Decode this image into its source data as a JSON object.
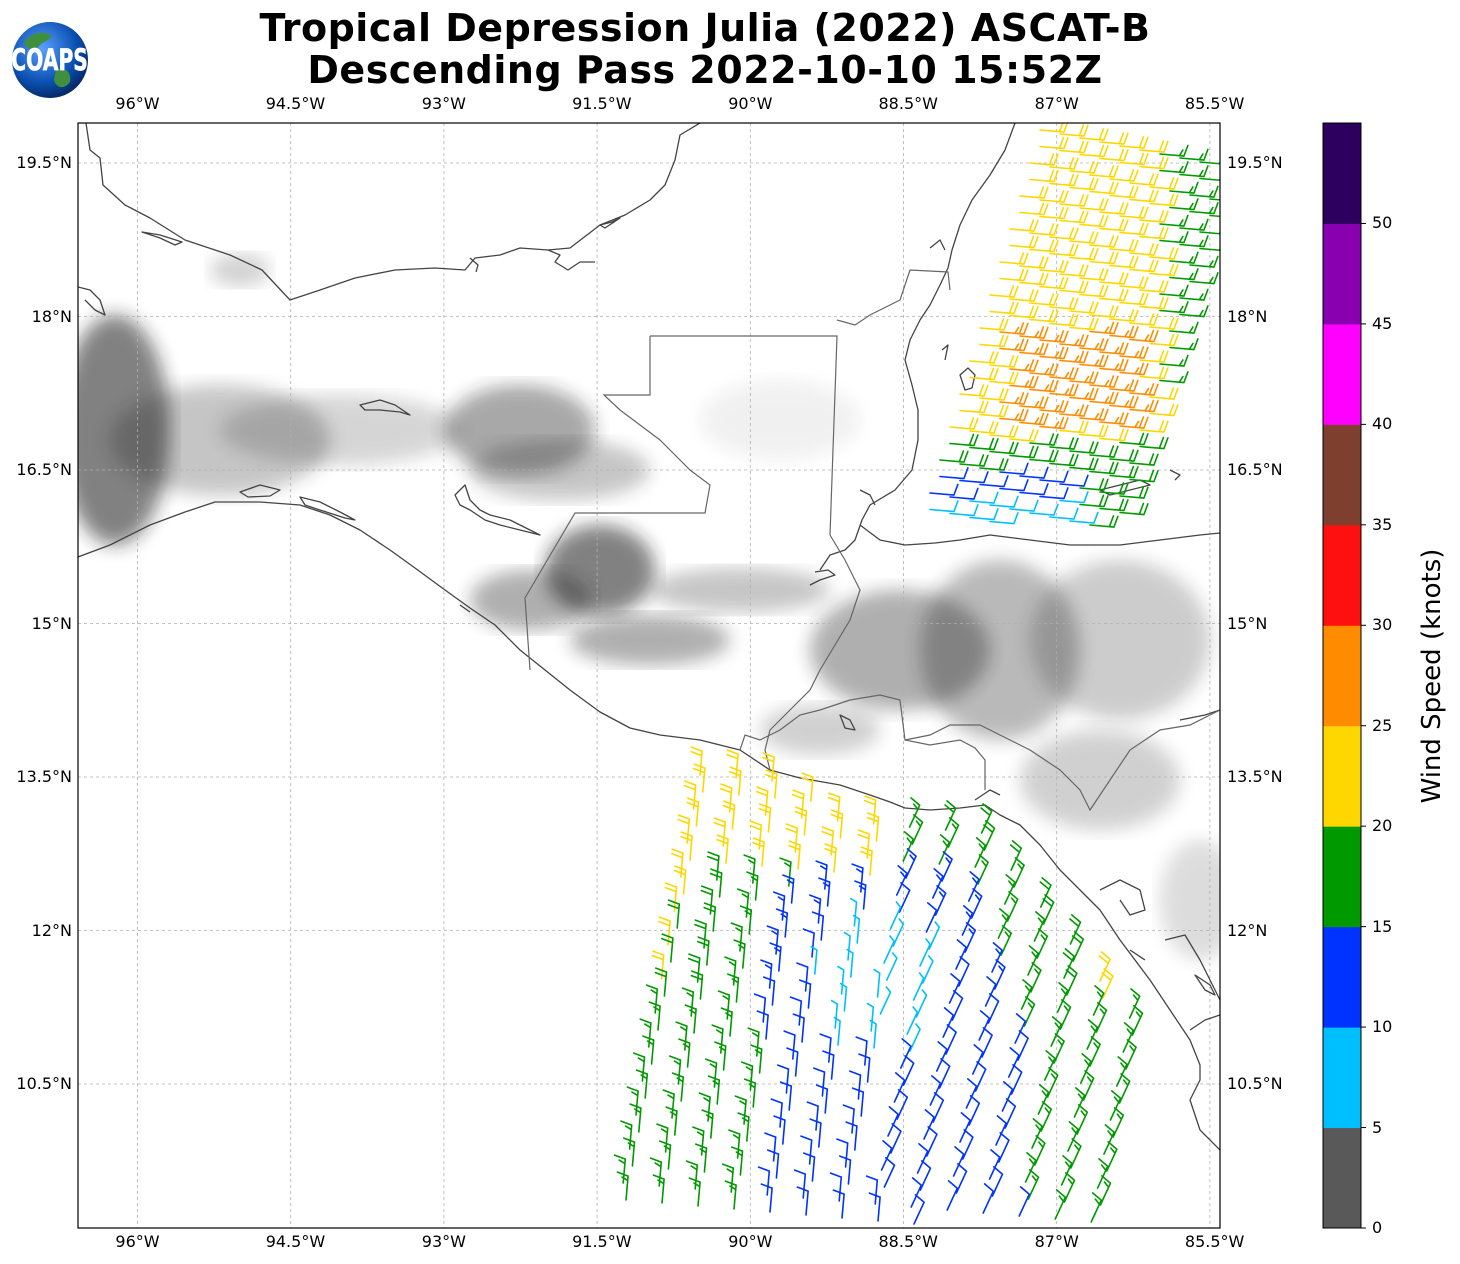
{
  "title": {
    "line1": "Tropical Depression Julia (2022) ASCAT-B",
    "line2": "Descending Pass 2022-10-10 15:52Z"
  },
  "logo": {
    "text": "COAPS",
    "icon": "globe-logo-icon"
  },
  "map": {
    "lon_range": [
      -96.6,
      -85.4
    ],
    "lat_range": [
      8.8,
      19.9
    ],
    "lon_ticks": [
      "96°W",
      "94.5°W",
      "93°W",
      "91.5°W",
      "90°W",
      "88.5°W",
      "87°W",
      "85.5°W"
    ],
    "lat_ticks": [
      "19.5°N",
      "18°N",
      "16.5°N",
      "15°N",
      "13.5°N",
      "12°N",
      "10.5°N"
    ],
    "gridlines": true,
    "background": "grayscale terrain"
  },
  "colorbar": {
    "label": "Wind Speed (knots)",
    "ticks": [
      "0",
      "5",
      "10",
      "15",
      "20",
      "25",
      "30",
      "35",
      "40",
      "45",
      "50"
    ],
    "bins": [
      {
        "range": [
          0,
          5
        ],
        "color": "#595959"
      },
      {
        "range": [
          5,
          10
        ],
        "color": "#00bfff"
      },
      {
        "range": [
          10,
          15
        ],
        "color": "#0033ff"
      },
      {
        "range": [
          15,
          20
        ],
        "color": "#009900"
      },
      {
        "range": [
          20,
          25
        ],
        "color": "#ffd700"
      },
      {
        "range": [
          25,
          30
        ],
        "color": "#ff8c00"
      },
      {
        "range": [
          30,
          35
        ],
        "color": "#ff1010"
      },
      {
        "range": [
          35,
          40
        ],
        "color": "#7f3f2f"
      },
      {
        "range": [
          40,
          45
        ],
        "color": "#ff00ff"
      },
      {
        "range": [
          45,
          50
        ],
        "color": "#8800b0"
      },
      {
        "range": [
          50,
          55
        ],
        "color": "#2d005f"
      }
    ]
  }
}
